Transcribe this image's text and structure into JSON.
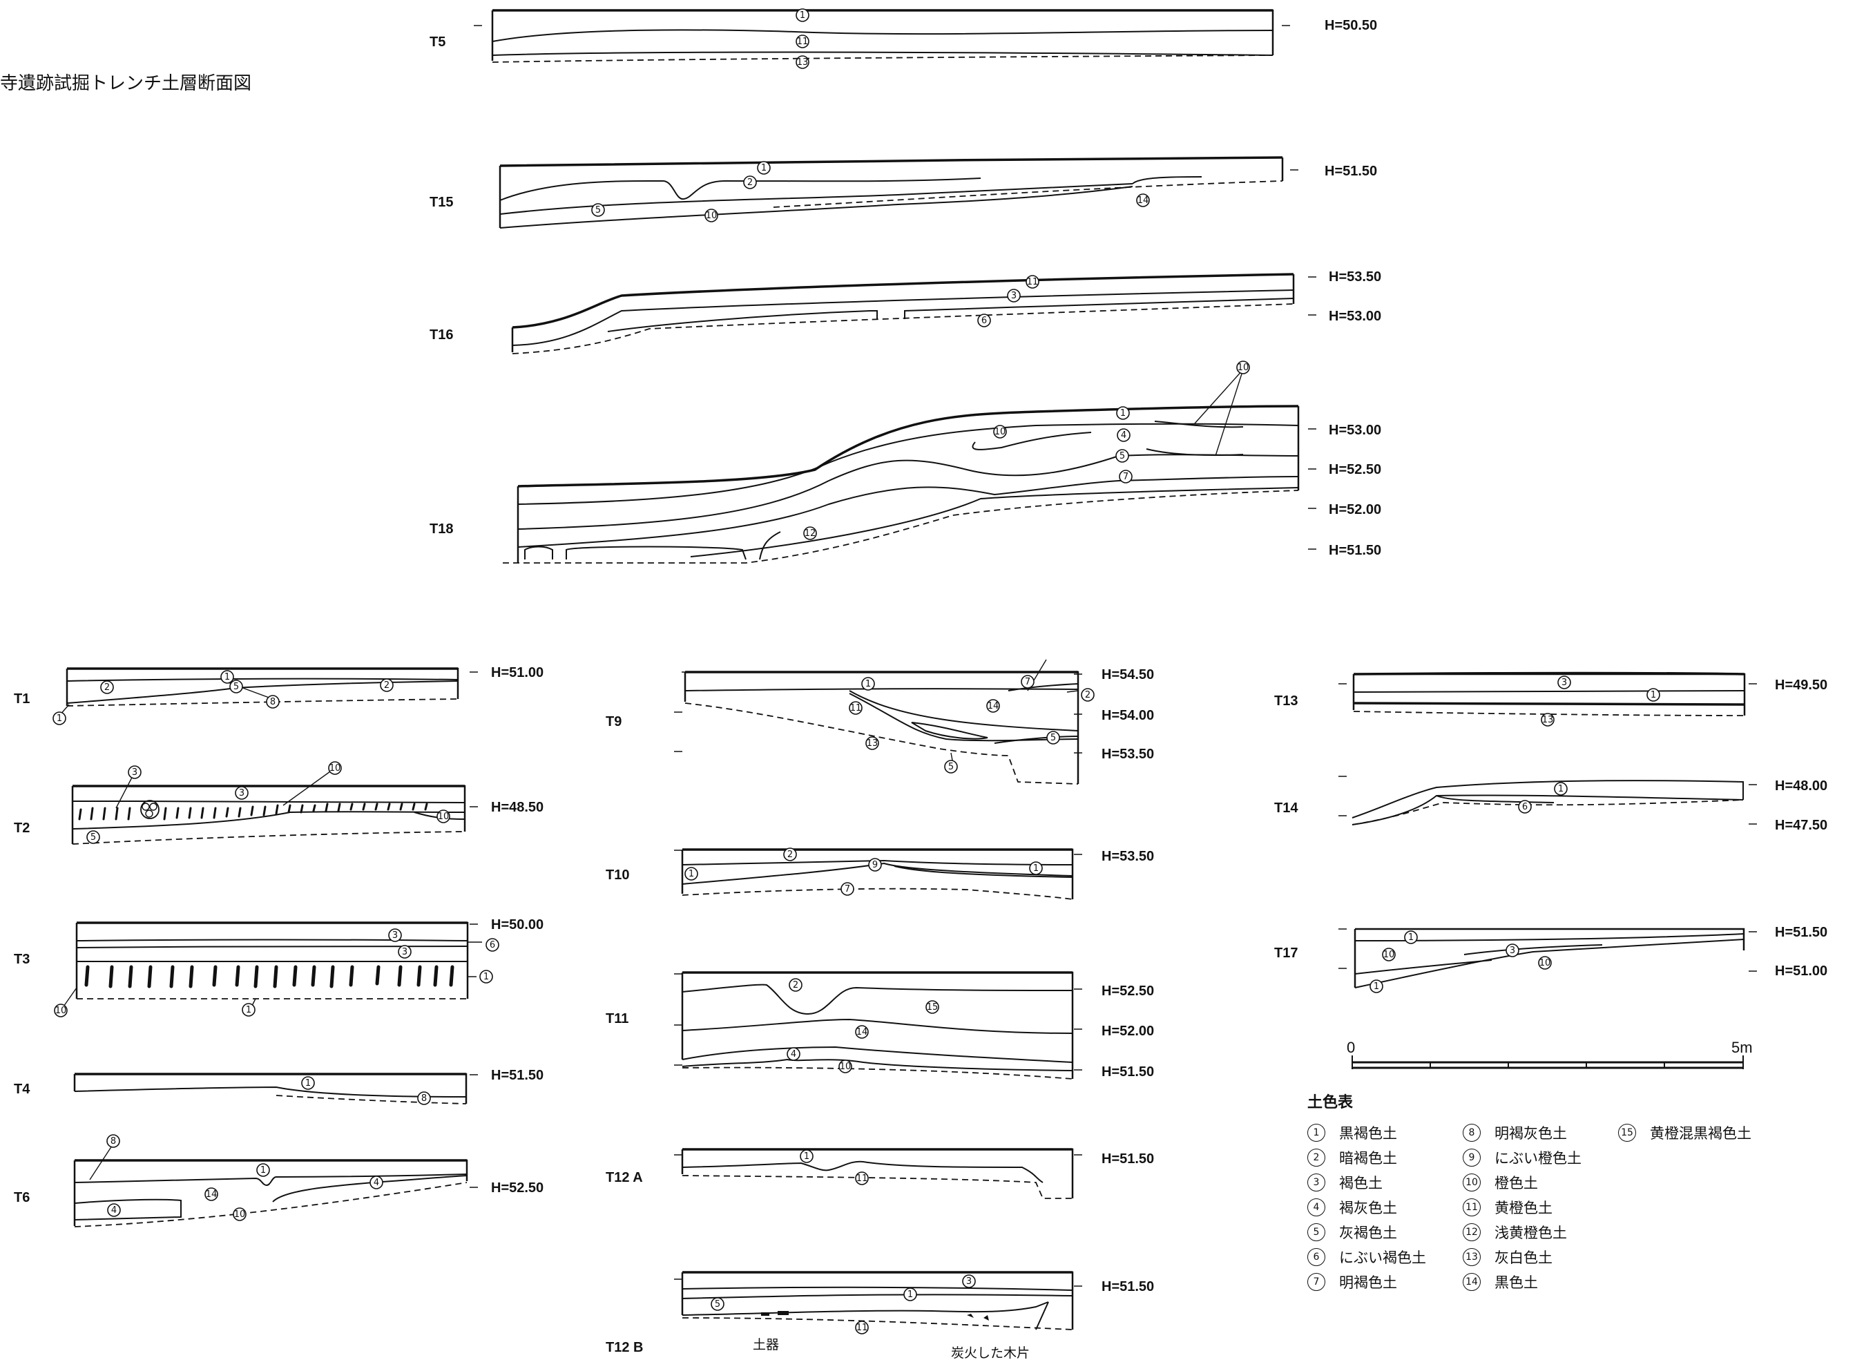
{
  "figure_title": "寺遺跡試掘トレンチ土層断面図",
  "trenches": [
    {
      "id": "T5",
      "heights": [
        "H=50.50"
      ]
    },
    {
      "id": "T15",
      "heights": [
        "H=51.50"
      ]
    },
    {
      "id": "T16",
      "heights": [
        "H=53.50",
        "H=53.00"
      ]
    },
    {
      "id": "T18",
      "heights": [
        "H=53.00",
        "H=52.50",
        "H=52.00",
        "H=51.50"
      ]
    },
    {
      "id": "T1",
      "heights": [
        "H=51.00"
      ]
    },
    {
      "id": "T2",
      "heights": [
        "H=48.50"
      ]
    },
    {
      "id": "T3",
      "heights": [
        "H=50.00"
      ]
    },
    {
      "id": "T4",
      "heights": [
        "H=51.50"
      ]
    },
    {
      "id": "T6",
      "heights": [
        "H=52.50"
      ]
    },
    {
      "id": "T9",
      "heights": [
        "H=54.50",
        "H=54.00",
        "H=53.50"
      ]
    },
    {
      "id": "T10",
      "heights": [
        "H=53.50"
      ]
    },
    {
      "id": "T11",
      "heights": [
        "H=52.50",
        "H=52.00",
        "H=51.50"
      ]
    },
    {
      "id": "T12 A",
      "heights": [
        "H=51.50"
      ]
    },
    {
      "id": "T12 B",
      "heights": [
        "H=51.50"
      ]
    },
    {
      "id": "T13",
      "heights": [
        "H=49.50"
      ]
    },
    {
      "id": "T14",
      "heights": [
        "H=48.00",
        "H=47.50"
      ]
    },
    {
      "id": "T17",
      "heights": [
        "H=51.50",
        "H=51.00"
      ]
    }
  ],
  "annotations": {
    "pottery": "土器",
    "charcoal": "炭火した木片"
  },
  "scale": {
    "start": "0",
    "end": "5m"
  },
  "legend": {
    "title": "土色表",
    "items": [
      {
        "num": "1",
        "label": "黒褐色土"
      },
      {
        "num": "2",
        "label": "暗褐色土"
      },
      {
        "num": "3",
        "label": "褐色土"
      },
      {
        "num": "4",
        "label": "褐灰色土"
      },
      {
        "num": "5",
        "label": "灰褐色土"
      },
      {
        "num": "6",
        "label": "にぶい褐色土"
      },
      {
        "num": "7",
        "label": "明褐色土"
      },
      {
        "num": "8",
        "label": "明褐灰色土"
      },
      {
        "num": "9",
        "label": "にぶい橙色土"
      },
      {
        "num": "10",
        "label": "橙色土"
      },
      {
        "num": "11",
        "label": "黄橙色土"
      },
      {
        "num": "12",
        "label": "浅黄橙色土"
      },
      {
        "num": "13",
        "label": "灰白色土"
      },
      {
        "num": "14",
        "label": "黒色土"
      },
      {
        "num": "15",
        "label": "黄橙混黒褐色土"
      }
    ]
  },
  "colors": {
    "ink": "#111111",
    "paper": "#ffffff"
  }
}
